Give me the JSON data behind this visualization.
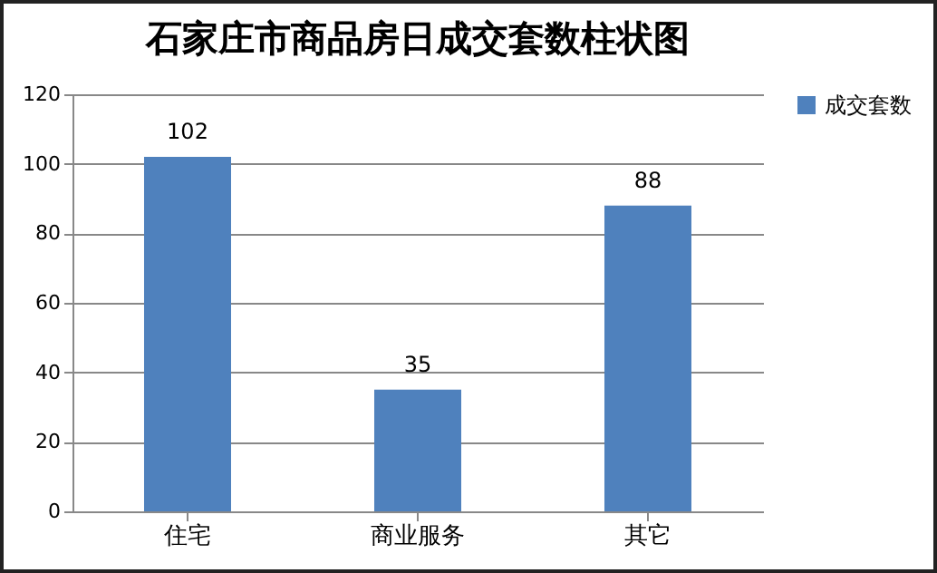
{
  "chart_data": {
    "type": "bar",
    "title": "石家庄市商品房日成交套数柱状图",
    "categories": [
      "住宅",
      "商业服务",
      "其它"
    ],
    "series": [
      {
        "name": "成交套数",
        "color": "#4f81bd",
        "values": [
          102,
          35,
          88
        ]
      }
    ],
    "ylim": [
      0,
      120
    ],
    "yticks": [
      0,
      20,
      40,
      60,
      80,
      100,
      120
    ],
    "grid": "y",
    "legend": "right",
    "data_labels": true
  }
}
